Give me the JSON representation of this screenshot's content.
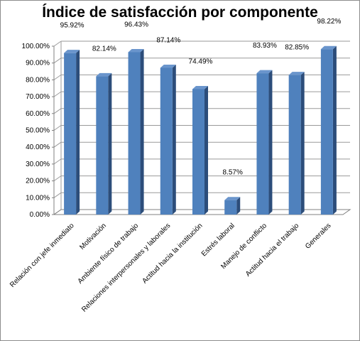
{
  "chart_data": {
    "type": "bar",
    "title": "Índice de satisfacción por componente",
    "categories": [
      "Relación con jefe inmediato",
      "Motivación",
      "Ambiente físico de trabajo",
      "Relaciones interpersonales y laborales",
      "Actitud hacia la institución",
      "Estrés laboral",
      "Manejo de conflicto",
      "Actitud hacia el trabajo",
      "Generales"
    ],
    "values": [
      95.92,
      82.14,
      96.43,
      87.14,
      74.49,
      8.57,
      83.93,
      82.85,
      98.22
    ],
    "value_labels": [
      "95.92%",
      "82.14%",
      "96.43%",
      "87.14%",
      "74.49%",
      "8.57%",
      "83.93%",
      "82.85%",
      "98.22%"
    ],
    "y_ticks": [
      "0.00%",
      "10.00%",
      "20.00%",
      "30.00%",
      "40.00%",
      "50.00%",
      "60.00%",
      "70.00%",
      "80.00%",
      "90.00%",
      "100.00%"
    ],
    "ylim": [
      0,
      100
    ],
    "grid": true,
    "legend": "none",
    "colors": {
      "bar_front": "#4f81bd",
      "bar_side": "#2c4d7a",
      "bar_top": "#6a95cc",
      "grid": "#9a9a9a"
    }
  }
}
